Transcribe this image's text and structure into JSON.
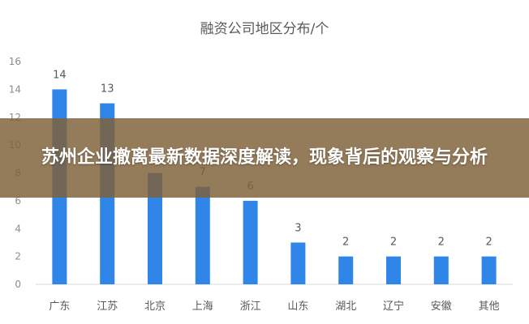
{
  "overlay": {
    "headline": "苏州企业撤离最新数据深度解读，现象背后的观察与分析"
  },
  "chart_data": {
    "type": "bar",
    "title": "融资公司地区分布/个",
    "categories": [
      "广东",
      "江苏",
      "北京",
      "上海",
      "浙江",
      "山东",
      "湖北",
      "辽宁",
      "安徽",
      "其他"
    ],
    "values": [
      14,
      13,
      8,
      7,
      6,
      3,
      2,
      2,
      2,
      2
    ],
    "data_labels": [
      "14",
      "13",
      "8",
      "7",
      "6",
      "3",
      "2",
      "2",
      "2",
      "2"
    ],
    "ylim": [
      0,
      16
    ],
    "yticks": [
      0,
      2,
      4,
      6,
      8,
      10,
      12,
      14,
      16
    ],
    "grid": false,
    "legend": "none",
    "bar_color": "#2f86e8"
  }
}
